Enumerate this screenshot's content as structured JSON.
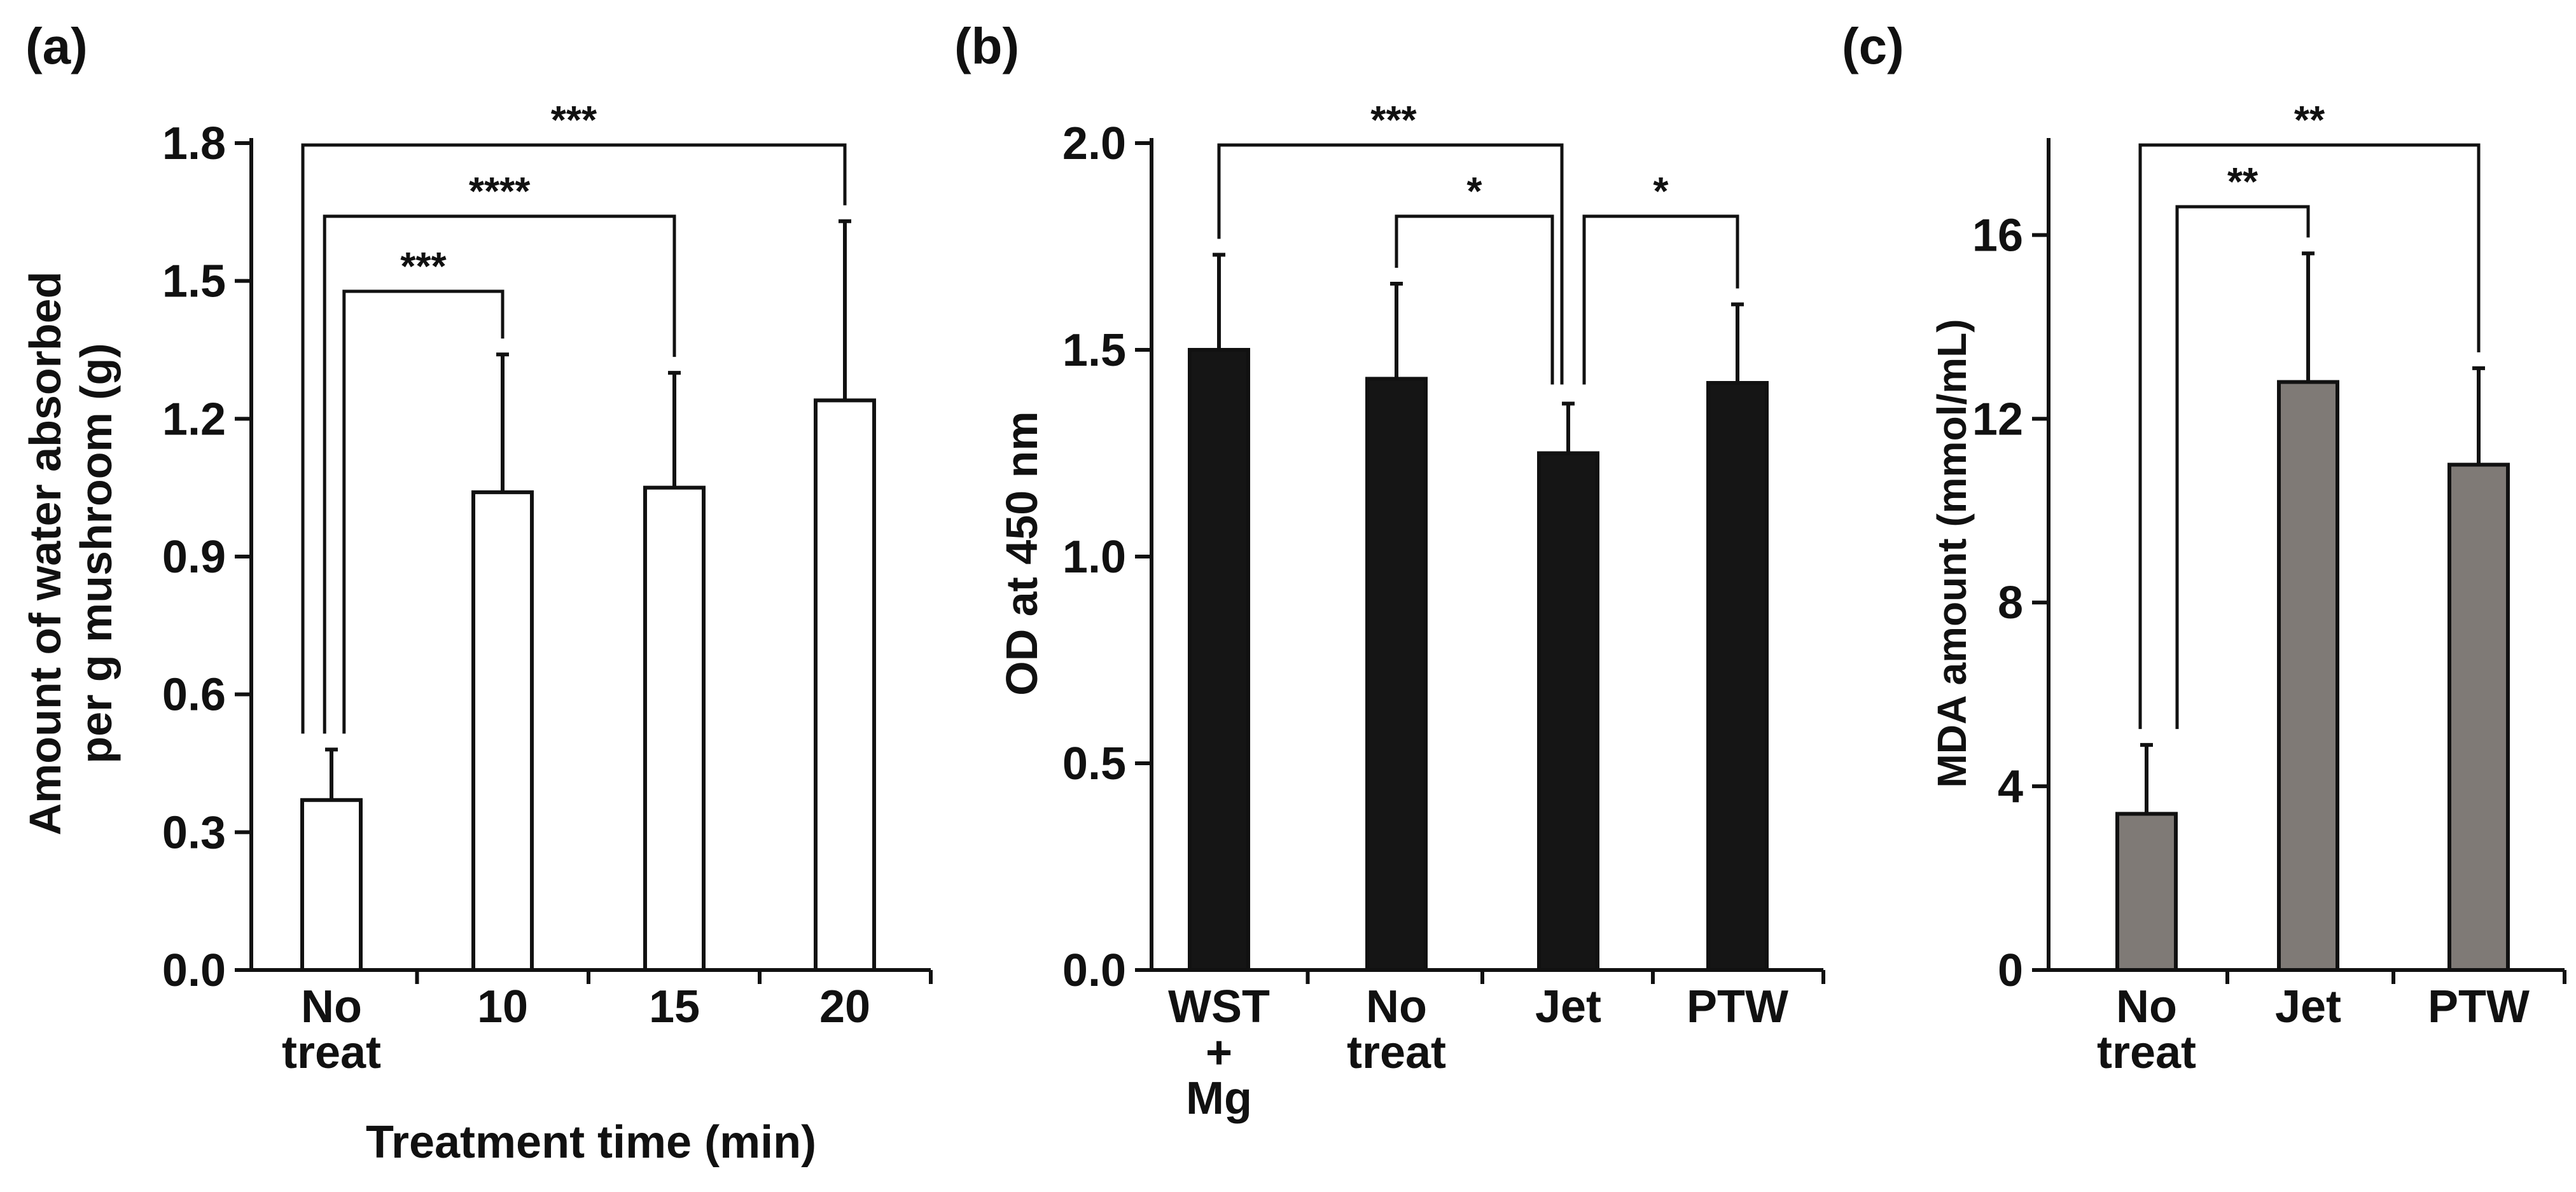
{
  "figure": {
    "colors": {
      "axis": "#111111",
      "white_bar": "#ffffff",
      "black_bar": "#151515",
      "gray_bar": "#7f7a76"
    }
  },
  "chart_data": [
    {
      "panel_label": "(a)",
      "type": "bar",
      "categories": [
        [
          "No",
          "treat"
        ],
        [
          "10"
        ],
        [
          "15"
        ],
        [
          "20"
        ]
      ],
      "values": [
        0.37,
        1.04,
        1.05,
        1.24
      ],
      "errors": [
        0.11,
        0.3,
        0.25,
        0.39
      ],
      "bar_color": "#ffffff",
      "xlabel": "Treatment time (min)",
      "ylabel": [
        "Amount of water absorbed",
        "per g mushroom (g)"
      ],
      "ylim": [
        0,
        1.8
      ],
      "yticks": [
        "0.0",
        "0.3",
        "0.6",
        "0.9",
        "1.2",
        "1.5",
        "1.8"
      ],
      "significance": [
        {
          "from": 0,
          "to": 1,
          "label": "***"
        },
        {
          "from": 0,
          "to": 2,
          "label": "****"
        },
        {
          "from": 0,
          "to": 3,
          "label": "***"
        }
      ]
    },
    {
      "panel_label": "(b)",
      "type": "bar",
      "categories": [
        [
          "WST",
          "+",
          "Mg"
        ],
        [
          "No",
          "treat"
        ],
        [
          "Jet"
        ],
        [
          "PTW"
        ]
      ],
      "values": [
        1.5,
        1.43,
        1.25,
        1.42
      ],
      "errors": [
        0.23,
        0.23,
        0.12,
        0.19
      ],
      "bar_color": "#151515",
      "xlabel": "",
      "ylabel": [
        "OD at 450 nm"
      ],
      "ylim": [
        0,
        2.0
      ],
      "yticks": [
        "0.0",
        "0.5",
        "1.0",
        "1.5",
        "2.0"
      ],
      "significance": [
        {
          "from": 1,
          "to": 2,
          "label": "*"
        },
        {
          "from": 2,
          "to": 3,
          "label": "*"
        },
        {
          "from": 0,
          "to": 2,
          "label": "***"
        }
      ]
    },
    {
      "panel_label": "(c)",
      "type": "bar",
      "categories": [
        [
          "No",
          "treat"
        ],
        [
          "Jet"
        ],
        [
          "PTW"
        ]
      ],
      "values": [
        3.4,
        12.8,
        11.0
      ],
      "errors": [
        1.5,
        2.8,
        2.1
      ],
      "bar_color": "#7f7a76",
      "xlabel": "",
      "ylabel": [
        "MDA amount (mmol/mL)"
      ],
      "ylim": [
        0,
        18
      ],
      "yticks": [
        "0",
        "4",
        "8",
        "12",
        "16"
      ],
      "significance": [
        {
          "from": 0,
          "to": 1,
          "label": "**"
        },
        {
          "from": 0,
          "to": 2,
          "label": "**"
        }
      ]
    }
  ]
}
